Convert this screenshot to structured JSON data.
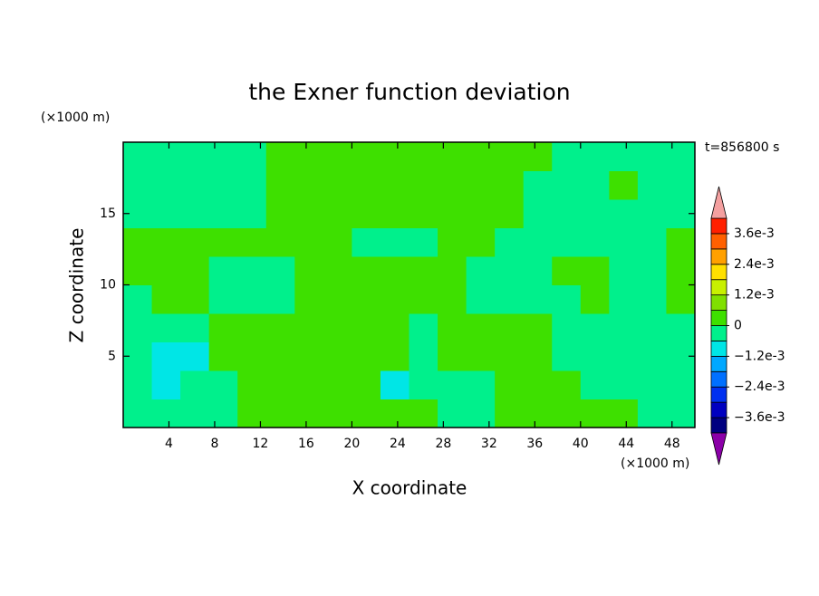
{
  "chart_data": {
    "type": "contour",
    "title": "the Exner function deviation",
    "xlabel": "X coordinate",
    "ylabel": "Z coordinate",
    "xunit": "(×1000 m)",
    "yunit": "(×1000 m)",
    "time_label": "t=856800 s",
    "xlim": [
      0,
      50
    ],
    "ylim": [
      0,
      20
    ],
    "xticks": [
      4,
      8,
      12,
      16,
      20,
      24,
      28,
      32,
      36,
      40,
      44,
      48
    ],
    "yticks": [
      5,
      10,
      15
    ],
    "x": [
      1.25,
      3.75,
      6.25,
      8.75,
      11.25,
      13.75,
      16.25,
      18.75,
      21.25,
      23.75,
      26.25,
      28.75,
      31.25,
      33.75,
      36.25,
      38.75,
      41.25,
      43.75,
      46.25,
      48.75
    ],
    "z": [
      1,
      3,
      5,
      7,
      9,
      11,
      13,
      15,
      17,
      19
    ],
    "values": [
      [
        -0.0003,
        -0.0003,
        -0.0003,
        -0.0003,
        0.0003,
        0.0003,
        0.0003,
        0.0003,
        0.0003,
        0.0003,
        0.0003,
        -0.0003,
        -0.0003,
        0.0003,
        0.0003,
        0.0003,
        0.0003,
        0.0003,
        -0.0003,
        -0.0003
      ],
      [
        -0.0003,
        -0.0009,
        -0.0003,
        -0.0003,
        0.0003,
        0.0003,
        0.0003,
        0.0003,
        0.0003,
        -0.0009,
        -0.0003,
        -0.0003,
        -0.0003,
        0.0003,
        0.0003,
        0.0003,
        -0.0003,
        -0.0003,
        -0.0003,
        -0.0003
      ],
      [
        -0.0003,
        -0.0009,
        -0.0009,
        0.0003,
        0.0003,
        0.0003,
        0.0003,
        0.0003,
        0.0003,
        0.0003,
        -0.0003,
        0.0003,
        0.0003,
        0.0003,
        0.0003,
        -0.0003,
        -0.0003,
        -0.0003,
        -0.0003,
        -0.0003
      ],
      [
        -0.0003,
        -0.0003,
        -0.0003,
        0.0003,
        0.0003,
        0.0003,
        0.0003,
        0.0003,
        0.0003,
        0.0003,
        -0.0003,
        0.0003,
        0.0003,
        0.0003,
        0.0003,
        -0.0003,
        -0.0003,
        -0.0003,
        -0.0003,
        -0.0003
      ],
      [
        -0.0003,
        0.0003,
        0.0003,
        -0.0003,
        -0.0003,
        -0.0003,
        0.0003,
        0.0003,
        0.0003,
        0.0003,
        0.0003,
        0.0003,
        -0.0003,
        -0.0003,
        -0.0003,
        -0.0003,
        0.0003,
        -0.0003,
        -0.0003,
        0.0003
      ],
      [
        0.0003,
        0.0003,
        0.0003,
        -0.0003,
        -0.0003,
        -0.0003,
        0.0003,
        0.0003,
        0.0003,
        0.0003,
        0.0003,
        0.0003,
        -0.0003,
        -0.0003,
        -0.0003,
        0.0003,
        0.0003,
        -0.0003,
        -0.0003,
        0.0003
      ],
      [
        0.0003,
        0.0003,
        0.0003,
        0.0003,
        0.0003,
        0.0003,
        0.0003,
        0.0003,
        -0.0003,
        -0.0003,
        -0.0003,
        0.0003,
        0.0003,
        -0.0003,
        -0.0003,
        -0.0003,
        -0.0003,
        -0.0003,
        -0.0003,
        0.0003
      ],
      [
        -0.0003,
        -0.0003,
        -0.0003,
        -0.0003,
        -0.0003,
        0.0003,
        0.0003,
        0.0003,
        0.0003,
        0.0003,
        0.0003,
        0.0003,
        0.0003,
        0.0003,
        -0.0003,
        -0.0003,
        -0.0003,
        -0.0003,
        -0.0003,
        -0.0003
      ],
      [
        -0.0003,
        -0.0003,
        -0.0003,
        -0.0003,
        -0.0003,
        0.0003,
        0.0003,
        0.0003,
        0.0003,
        0.0003,
        0.0003,
        0.0003,
        0.0003,
        0.0003,
        -0.0003,
        -0.0003,
        -0.0003,
        0.0003,
        -0.0003,
        -0.0003
      ],
      [
        -0.0003,
        -0.0003,
        -0.0003,
        -0.0003,
        -0.0003,
        0.0003,
        0.0003,
        0.0003,
        0.0003,
        0.0003,
        0.0003,
        0.0003,
        0.0003,
        0.0003,
        0.0003,
        -0.0003,
        -0.0003,
        -0.0003,
        -0.0003,
        -0.0003
      ]
    ],
    "colorbar": {
      "levels": [
        -0.0042,
        -0.0036,
        -0.003,
        -0.0024,
        -0.0018,
        -0.0012,
        -0.0006,
        0,
        0.0006,
        0.0012,
        0.0018,
        0.0024,
        0.003,
        0.0036,
        0.0042
      ],
      "colors": [
        "#8b00a8",
        "#000080",
        "#0000c0",
        "#0030f0",
        "#0070ff",
        "#00a8ff",
        "#00e6e6",
        "#00f08c",
        "#3ee000",
        "#80e000",
        "#c8f000",
        "#ffe000",
        "#ffa000",
        "#ff6000",
        "#ff2000",
        "#f4a0a0"
      ],
      "ticks": [
        {
          "value": 0.0036,
          "label": "3.6e-3"
        },
        {
          "value": 0.0024,
          "label": "2.4e-3"
        },
        {
          "value": 0.0012,
          "label": "1.2e-3"
        },
        0,
        {
          "value": -0.0012,
          "label": "−1.2e-3"
        },
        {
          "value": -0.0024,
          "label": "−2.4e-3"
        },
        {
          "value": -0.0036,
          "label": "−3.6e-3"
        }
      ]
    }
  }
}
